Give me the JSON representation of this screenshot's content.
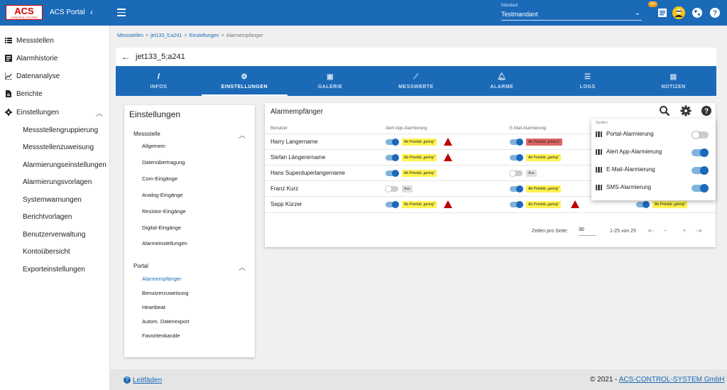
{
  "topbar": {
    "logo_text": "ACS",
    "logo_sub": "CONTROL SYSTEM",
    "app_title": "ACS Portal",
    "mandant_label": "Mandant",
    "mandant_value": "Testmandant",
    "badge_count": "50"
  },
  "sidebar": {
    "items": [
      {
        "label": "Messstellen",
        "icon": "list-icon"
      },
      {
        "label": "Alarmhistorie",
        "icon": "history-icon"
      },
      {
        "label": "Datenanalyse",
        "icon": "chart-icon"
      },
      {
        "label": "Berichte",
        "icon": "report-icon"
      },
      {
        "label": "Einstellungen",
        "icon": "gear-icon"
      }
    ],
    "subitems": [
      "Messstellengruppierung",
      "Messstellenzuweisung",
      "Alarmierungseinstellungen",
      "Alarmierungsvorlagen",
      "Systemwarnungen",
      "Berichtvorlagen",
      "Benutzerverwaltung",
      "Kontoübersicht",
      "Exporteinstellungen"
    ]
  },
  "breadcrumb": [
    "Messstellen",
    "jet133_5;a241",
    "Einstellungen",
    "Alarmempfänger"
  ],
  "header_title": "jet133_5;a241",
  "tabs": [
    {
      "label": "INFOS",
      "icon": "info-icon"
    },
    {
      "label": "EINSTELLUNGEN",
      "icon": "gear-icon"
    },
    {
      "label": "GALERIE",
      "icon": "camera-icon"
    },
    {
      "label": "MESSWERTE",
      "icon": "trend-icon"
    },
    {
      "label": "ALARME",
      "icon": "bell-icon"
    },
    {
      "label": "LOGS",
      "icon": "logs-icon"
    },
    {
      "label": "NOTIZEN",
      "icon": "notes-icon"
    }
  ],
  "settings": {
    "title": "Einstellungen",
    "section1": "Messstelle",
    "items1": [
      "Allgemein",
      "Datenübertragung",
      "Com-Eingänge",
      "Analog-Eingänge",
      "Resistor-Eingänge",
      "Digital-Eingänge",
      "Alarmeinstellungen"
    ],
    "section2": "Portal",
    "items2": [
      "Alarmempfänger",
      "Benutzerzuweisung",
      "Heartbeat",
      "Autom. Datenexport",
      "Favoritenkanäle"
    ]
  },
  "alarm": {
    "title": "Alarmempfänger",
    "col_user": "Benutzer",
    "col_app": "Alert App-Alarmierung",
    "col_mail": "E-Mail-Alarmierung",
    "rows": [
      {
        "name": "Harry Langername",
        "app_tag": "Ab Priorität „gering\"",
        "mail_tag": "Ab Priorität „kritisch\""
      },
      {
        "name": "Stefan Längerername",
        "app_tag": "Ab Priorität „gering\"",
        "mail_tag": "Ab Priorität „gering\""
      },
      {
        "name": "Hans Superduperlangername",
        "app_tag": "Ab Priorität „gering\"",
        "mail_tag": "Aus"
      },
      {
        "name": "Franz Kurz",
        "app_tag": "Aus",
        "mail_tag": "Ab Priorität „gering\""
      },
      {
        "name": "Sepp Kürzer",
        "app_tag": "Ab Priorität „gering\"",
        "mail_tag": "Ab Priorität „gering\"",
        "sms_tag": "Ab Priorität „gering\""
      }
    ],
    "rows_per_page_label": "Zeilen pro Seite:",
    "rows_per_page": "30",
    "range": "1-25 von 25"
  },
  "columns_popup": {
    "header": "Spalten",
    "items": [
      {
        "label": "Portal-Alarmierung",
        "on": false
      },
      {
        "label": "Alert App-Alarmierung",
        "on": true
      },
      {
        "label": "E-Mail-Alarmierung",
        "on": true
      },
      {
        "label": "SMS-Alarmierung",
        "on": true
      }
    ]
  },
  "footer": {
    "help_label": "Leitfäden",
    "copyright": "© 2021 - ",
    "company": "ACS-CONTROL-SYSTEM GmbH"
  }
}
